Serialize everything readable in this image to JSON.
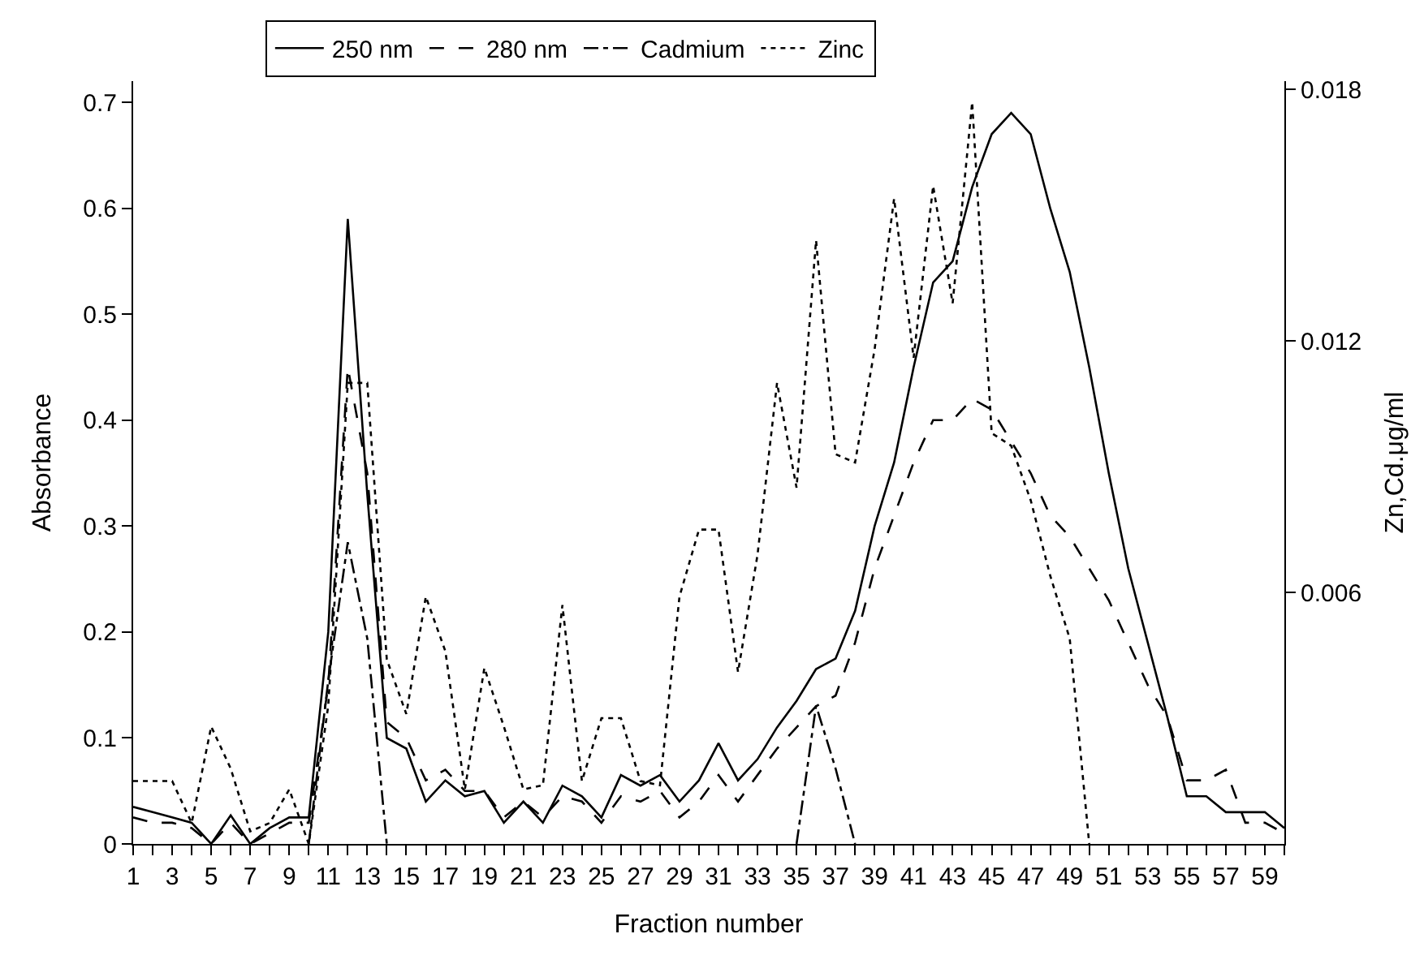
{
  "chart_data": {
    "type": "line",
    "xlabel": "Fraction number",
    "ylabel": "Absorbance",
    "y2label": "Zn,Cd.μg/ml",
    "x": [
      1,
      2,
      3,
      4,
      5,
      6,
      7,
      8,
      9,
      10,
      11,
      12,
      13,
      14,
      15,
      16,
      17,
      18,
      19,
      20,
      21,
      22,
      23,
      24,
      25,
      26,
      27,
      28,
      29,
      30,
      31,
      32,
      33,
      34,
      35,
      36,
      37,
      38,
      39,
      40,
      41,
      42,
      43,
      44,
      45,
      46,
      47,
      48,
      49,
      50,
      51,
      52,
      53,
      54,
      55,
      56,
      57,
      58,
      59,
      60
    ],
    "series": [
      {
        "name": "250 nm",
        "color": "#000000",
        "line_style": "solid",
        "values": [
          0.035,
          0.03,
          0.025,
          0.02,
          0.0,
          0.027,
          0.0,
          0.015,
          0.025,
          0.025,
          0.2,
          0.59,
          0.33,
          0.1,
          0.09,
          0.04,
          0.06,
          0.045,
          0.05,
          0.02,
          0.04,
          0.02,
          0.055,
          0.045,
          0.025,
          0.065,
          0.055,
          0.065,
          0.04,
          0.06,
          0.095,
          0.06,
          0.08,
          0.11,
          0.135,
          0.165,
          0.175,
          0.22,
          0.3,
          0.36,
          0.45,
          0.53,
          0.55,
          0.62,
          0.67,
          0.69,
          0.67,
          0.6,
          0.54,
          0.45,
          0.35,
          0.26,
          0.19,
          0.12,
          0.045,
          0.045,
          0.03,
          0.03,
          0.03,
          0.015
        ]
      },
      {
        "name": "280 nm",
        "color": "#000000",
        "line_style": "dashed",
        "values": [
          0.025,
          0.02,
          0.02,
          0.015,
          0.0,
          0.02,
          0.0,
          0.01,
          0.02,
          0.02,
          0.15,
          0.45,
          0.35,
          0.115,
          0.1,
          0.06,
          0.07,
          0.05,
          0.05,
          0.025,
          0.04,
          0.025,
          0.045,
          0.04,
          0.02,
          0.045,
          0.04,
          0.05,
          0.025,
          0.04,
          0.065,
          0.04,
          0.065,
          0.09,
          0.11,
          0.13,
          0.14,
          0.19,
          0.26,
          0.31,
          0.36,
          0.4,
          0.4,
          0.42,
          0.41,
          0.38,
          0.35,
          0.31,
          0.29,
          0.26,
          0.23,
          0.19,
          0.15,
          0.12,
          0.06,
          0.06,
          0.07,
          0.02,
          0.02,
          0.01
        ]
      },
      {
        "name": "Cadmium",
        "color": "#000000",
        "line_style": "dashdot",
        "axis": "y2",
        "values": [
          null,
          null,
          null,
          null,
          null,
          null,
          null,
          null,
          null,
          0.0,
          0.0039,
          0.0072,
          0.0049,
          0.0,
          null,
          null,
          null,
          null,
          null,
          null,
          null,
          null,
          null,
          null,
          null,
          null,
          null,
          null,
          null,
          null,
          null,
          null,
          null,
          null,
          0.0,
          0.0033,
          0.0018,
          0.0,
          null,
          null,
          null,
          null,
          null,
          null,
          null,
          null,
          null,
          null,
          null,
          null,
          null,
          null,
          null,
          null,
          null,
          null,
          null,
          null,
          null,
          null
        ]
      },
      {
        "name": "Zinc",
        "color": "#000000",
        "line_style": "dotted",
        "axis": "y2",
        "values": [
          0.0015,
          0.0015,
          0.0015,
          0.0005,
          0.0028,
          0.0018,
          0.0003,
          0.0005,
          0.0013,
          0.0,
          0.0033,
          0.011,
          0.011,
          0.0044,
          0.0031,
          0.0059,
          0.0046,
          0.0013,
          0.0042,
          0.0028,
          0.0013,
          0.0014,
          0.0057,
          0.0015,
          0.003,
          0.003,
          0.0015,
          0.0014,
          0.0059,
          0.0075,
          0.0075,
          0.0041,
          0.0069,
          0.011,
          0.0085,
          0.0144,
          0.0093,
          0.0091,
          0.0118,
          0.0154,
          0.0116,
          0.0157,
          0.0129,
          0.0177,
          0.0098,
          0.0095,
          0.0082,
          0.0064,
          0.0049,
          0.0,
          null,
          null,
          null,
          null,
          null,
          null,
          null,
          null,
          null,
          null
        ]
      }
    ],
    "xlim": [
      1,
      60
    ],
    "xticks": [
      1,
      {
        "value": 2,
        "label": null
      },
      3,
      {
        "value": 4,
        "label": null
      },
      5,
      {
        "value": 6,
        "label": null
      },
      7,
      {
        "value": 8,
        "label": null
      },
      9,
      {
        "value": 10,
        "label": null
      },
      11,
      {
        "value": 12,
        "label": null
      },
      13,
      {
        "value": 14,
        "label": null
      },
      15,
      {
        "value": 16,
        "label": null
      },
      17,
      {
        "value": 18,
        "label": null
      },
      19,
      {
        "value": 20,
        "label": null
      },
      21,
      {
        "value": 22,
        "label": null
      },
      23,
      {
        "value": 24,
        "label": null
      },
      25,
      {
        "value": 26,
        "label": null
      },
      27,
      {
        "value": 28,
        "label": null
      },
      29,
      {
        "value": 30,
        "label": null
      },
      31,
      {
        "value": 32,
        "label": null
      },
      33,
      {
        "value": 34,
        "label": null
      },
      35,
      {
        "value": 36,
        "label": null
      },
      37,
      {
        "value": 38,
        "label": null
      },
      39,
      {
        "value": 40,
        "label": null
      },
      41,
      {
        "value": 42,
        "label": null
      },
      43,
      {
        "value": 44,
        "label": null
      },
      45,
      {
        "value": 46,
        "label": null
      },
      47,
      {
        "value": 48,
        "label": null
      },
      49,
      {
        "value": 50,
        "label": null
      },
      51,
      {
        "value": 52,
        "label": null
      },
      53,
      {
        "value": 54,
        "label": null
      },
      55,
      {
        "value": 56,
        "label": null
      },
      57,
      {
        "value": 58,
        "label": null
      },
      59,
      {
        "value": 60,
        "label": null
      }
    ],
    "ylim": [
      0,
      0.72
    ],
    "yticks": [
      0,
      0.1,
      0.2,
      0.3,
      0.4,
      0.5,
      0.6,
      0.7
    ],
    "y2lim": [
      0,
      0.0182
    ],
    "y2ticks": [
      0.006,
      0.012,
      0.018
    ],
    "legend": "top",
    "marker": "none"
  }
}
